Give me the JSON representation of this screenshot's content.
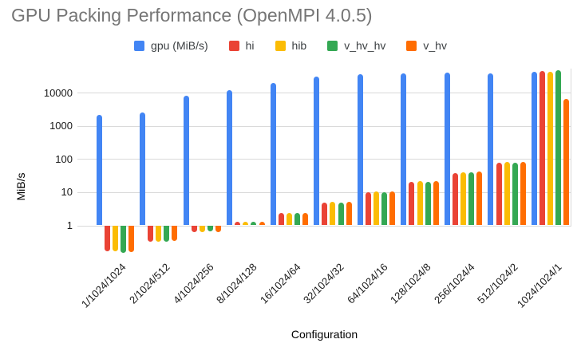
{
  "title": "GPU Packing Performance (OpenMPI 4.0.5)",
  "chart_data": {
    "type": "bar",
    "title": "GPU Packing Performance (OpenMPI 4.0.5)",
    "xlabel": "Configuration",
    "ylabel": "MiB/s",
    "y_scale": "log",
    "y_ticks": [
      1,
      10,
      100,
      1000,
      10000
    ],
    "ylim_log10": [
      -0.85,
      4.72
    ],
    "grid": true,
    "legend_position": "top",
    "categories": [
      "1/1024/1024",
      "2/1024/512",
      "4/1024/256",
      "8/1024/128",
      "16/1024/64",
      "32/1024/32",
      "64/1024/16",
      "128/1024/8",
      "256/1024/4",
      "512/1024/2",
      "1024/1024/1"
    ],
    "series": [
      {
        "name": "gpu (MiB/s)",
        "color": "#4285F4",
        "values": [
          2100,
          2500,
          7900,
          12000,
          20000,
          31000,
          35000,
          38000,
          41000,
          39000,
          43000
        ]
      },
      {
        "name": "hi",
        "color": "#EA4335",
        "values": [
          0.17,
          0.33,
          0.62,
          1.25,
          2.4,
          4.8,
          10,
          20,
          37,
          76,
          45500
        ]
      },
      {
        "name": "hib",
        "color": "#FBBC04",
        "values": [
          0.17,
          0.32,
          0.63,
          1.3,
          2.3,
          5.0,
          10.5,
          21,
          39,
          82,
          43500
        ]
      },
      {
        "name": "v_hv_hv",
        "color": "#34A853",
        "values": [
          0.15,
          0.33,
          0.65,
          1.25,
          2.4,
          4.9,
          10.2,
          20,
          39,
          78,
          48000
        ]
      },
      {
        "name": "v_hv",
        "color": "#FF6D01",
        "values": [
          0.16,
          0.34,
          0.64,
          1.3,
          2.3,
          5.1,
          10.3,
          21,
          42,
          81,
          6300
        ]
      }
    ]
  }
}
